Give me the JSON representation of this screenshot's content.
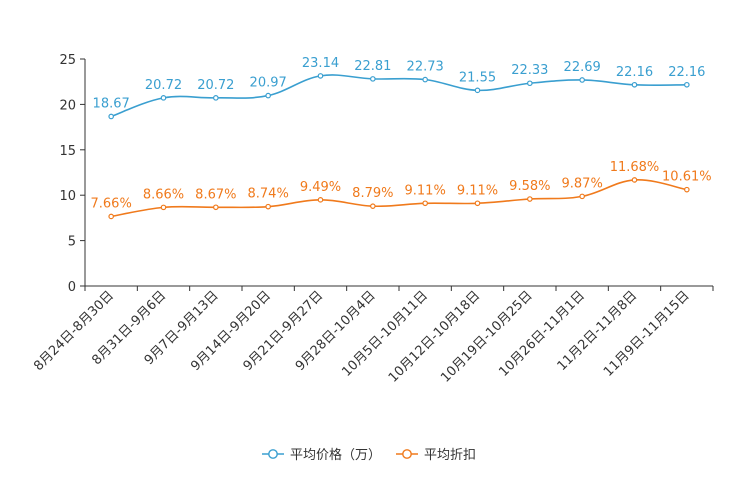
{
  "chart_data": {
    "type": "line",
    "title": "",
    "xlabel": "",
    "ylabel": "",
    "ylim": [
      0,
      25
    ],
    "yticks": [
      0,
      5,
      10,
      15,
      20,
      25
    ],
    "grid": false,
    "legend_position": "bottom-center",
    "categories": [
      "8月24日-8月30日",
      "8月31日-9月6日",
      "9月7日-9月13日",
      "9月14日-9月20日",
      "9月21日-9月27日",
      "9月28日-10月4日",
      "10月5日-10月11日",
      "10月12日-10月18日",
      "10月19日-10月25日",
      "10月26日-11月1日",
      "11月2日-11月8日",
      "11月9日-11月15日"
    ],
    "series": [
      {
        "name": "平均价格（万）",
        "color": "#3a9fd0",
        "values": [
          18.67,
          20.72,
          20.72,
          20.97,
          23.14,
          22.81,
          22.73,
          21.55,
          22.33,
          22.69,
          22.16,
          22.16
        ],
        "labels": [
          "18.67",
          "20.72",
          "20.72",
          "20.97",
          "23.14",
          "22.81",
          "22.73",
          "21.55",
          "22.33",
          "22.69",
          "22.16",
          "22.16"
        ]
      },
      {
        "name": "平均折扣",
        "color": "#f07a1c",
        "values": [
          7.66,
          8.66,
          8.67,
          8.74,
          9.49,
          8.79,
          9.11,
          9.11,
          9.58,
          9.87,
          11.68,
          10.61
        ],
        "labels": [
          "7.66%",
          "8.66%",
          "8.67%",
          "8.74%",
          "9.49%",
          "8.79%",
          "9.11%",
          "9.11%",
          "9.58%",
          "9.87%",
          "11.68%",
          "10.61%"
        ]
      }
    ]
  }
}
